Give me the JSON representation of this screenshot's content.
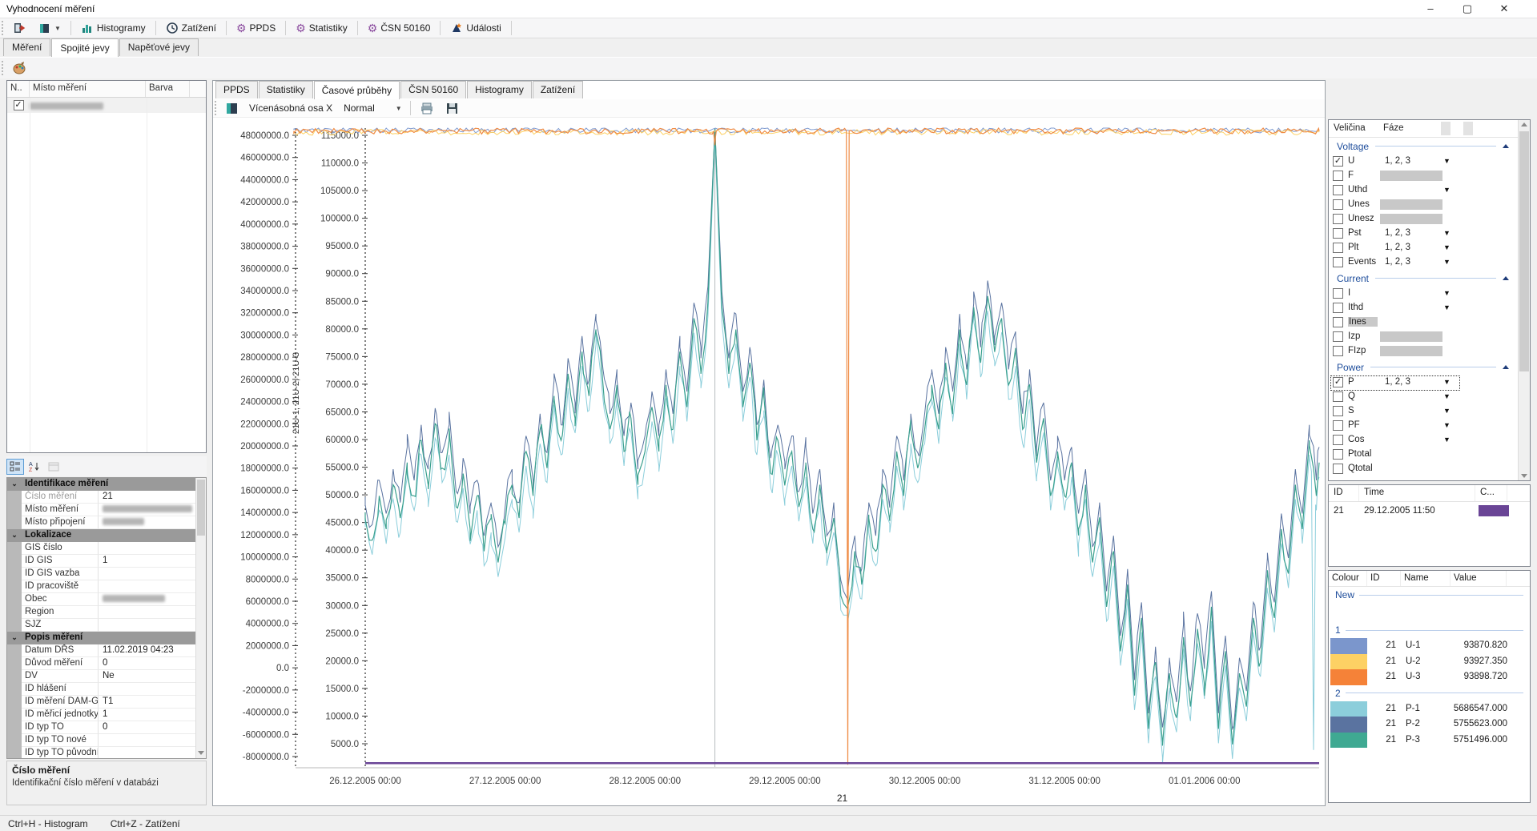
{
  "window": {
    "title": "Vyhodnocení měření",
    "controls": {
      "minimize": "–",
      "maximize": "▢",
      "close": "✕"
    }
  },
  "toolbar": {
    "buttons": [
      {
        "id": "exit",
        "label": ""
      },
      {
        "id": "window-mode",
        "label": ""
      },
      {
        "id": "histogramy",
        "label": "Histogramy"
      },
      {
        "id": "zatizeni",
        "label": "Zatížení"
      },
      {
        "id": "ppds",
        "label": "PPDS"
      },
      {
        "id": "statistiky",
        "label": "Statistiky"
      },
      {
        "id": "csn-50160",
        "label": "ČSN 50160"
      },
      {
        "id": "udalosti",
        "label": "Události"
      }
    ]
  },
  "main_tabs": {
    "items": [
      "Měření",
      "Spojité jevy",
      "Napěťové jevy"
    ],
    "active": 1
  },
  "measurement_list": {
    "columns": [
      "N..",
      "Místo měření",
      "Barva"
    ],
    "rows": [
      {
        "checked": true,
        "place_redacted": true,
        "color": ""
      }
    ]
  },
  "property_grid": {
    "rows": [
      {
        "t": "cat",
        "label": "Identifikace měření"
      },
      {
        "label": "Číslo měření",
        "value": "21",
        "dim": true
      },
      {
        "label": "Místo měření",
        "value": "",
        "blur": 112
      },
      {
        "label": "Místo připojení",
        "value": "",
        "blur": 52
      },
      {
        "t": "cat",
        "label": "Lokalizace"
      },
      {
        "label": "GIS číslo",
        "value": ""
      },
      {
        "label": "ID GIS",
        "value": "1"
      },
      {
        "label": "ID GIS vazba",
        "value": ""
      },
      {
        "label": "ID pracoviště",
        "value": ""
      },
      {
        "label": "Obec",
        "value": "",
        "blur": 78
      },
      {
        "label": "Region",
        "value": ""
      },
      {
        "label": "SJZ",
        "value": ""
      },
      {
        "t": "cat",
        "label": "Popis měření"
      },
      {
        "label": "Datum DŘS",
        "value": "11.02.2019 04:23"
      },
      {
        "label": "Důvod měření",
        "value": "0"
      },
      {
        "label": "DV",
        "value": "Ne"
      },
      {
        "label": "ID hlášení",
        "value": ""
      },
      {
        "label": "ID měření DAM-GI",
        "value": "T1"
      },
      {
        "label": "ID měřicí jednotky",
        "value": "1"
      },
      {
        "label": "ID typ TO",
        "value": "0"
      },
      {
        "label": "ID typ TO nové",
        "value": ""
      },
      {
        "label": "ID typ TO původní",
        "value": ""
      }
    ]
  },
  "pg_desc": {
    "title": "Číslo měření",
    "text": "Identifikační číslo měření v databázi"
  },
  "chart_tabs": {
    "items": [
      "PPDS",
      "Statistiky",
      "Časové průběhy",
      "ČSN 50160",
      "Histogramy",
      "Zatížení"
    ],
    "active": 2
  },
  "chart_toolbar": {
    "axis_label": "Vícenásobná osa X",
    "mode": "Normal"
  },
  "quantity_tree": {
    "columns": [
      "Veličina",
      "Fáze"
    ],
    "groups": [
      {
        "label": "Voltage",
        "rows": [
          {
            "name": "U",
            "checked": true,
            "phases": "1, 2, 3",
            "dropdown": true
          },
          {
            "name": "F",
            "grayBox": true
          },
          {
            "name": "Uthd",
            "dropdown": true
          },
          {
            "name": "Unes",
            "grayBox": true
          },
          {
            "name": "Unesz",
            "grayBox": true
          },
          {
            "name": "Pst",
            "phases": "1, 2, 3",
            "dropdown": true
          },
          {
            "name": "Plt",
            "phases": "1, 2, 3",
            "dropdown": true
          },
          {
            "name": "Events",
            "phases": "1, 2, 3",
            "dropdown": true
          }
        ]
      },
      {
        "label": "Current",
        "rows": [
          {
            "name": "I",
            "dropdown": true
          },
          {
            "name": "Ithd",
            "dropdown": true
          },
          {
            "name": "Ines",
            "labelHighlight": true
          },
          {
            "name": "Izp",
            "grayBox": true
          },
          {
            "name": "FIzp",
            "grayBox": true
          }
        ]
      },
      {
        "label": "Power",
        "rows": [
          {
            "name": "P",
            "checked": true,
            "phases": "1, 2, 3",
            "dropdown": true,
            "focused": true
          },
          {
            "name": "Q",
            "dropdown": true
          },
          {
            "name": "S",
            "dropdown": true
          },
          {
            "name": "PF",
            "dropdown": true
          },
          {
            "name": "Cos",
            "dropdown": true
          },
          {
            "name": "Ptotal"
          },
          {
            "name": "Qtotal"
          }
        ]
      }
    ]
  },
  "id_table": {
    "columns": [
      "ID",
      "Time",
      "C..."
    ],
    "rows": [
      {
        "id": "21",
        "time": "29.12.2005 11:50",
        "color": "#6a4596"
      }
    ]
  },
  "legend": {
    "columns": [
      "Colour",
      "ID",
      "Name",
      "Value"
    ],
    "groups": [
      {
        "label": "New",
        "rows": []
      },
      {
        "label": "1",
        "rows": [
          {
            "color": "#7b96cc",
            "id": "21",
            "name": "U-1",
            "value": "93870.820"
          },
          {
            "color": "#fdd164",
            "id": "21",
            "name": "U-2",
            "value": "93927.350"
          },
          {
            "color": "#f58238",
            "id": "21",
            "name": "U-3",
            "value": "93898.720"
          }
        ]
      },
      {
        "label": "2",
        "rows": [
          {
            "color": "#8ccedb",
            "id": "21",
            "name": "P-1",
            "value": "5686547.000"
          },
          {
            "color": "#5a73a0",
            "id": "21",
            "name": "P-2",
            "value": "5755623.000"
          },
          {
            "color": "#3fa992",
            "id": "21",
            "name": "P-3",
            "value": "5751496.000"
          }
        ]
      }
    ]
  },
  "status_bar": {
    "items": [
      "Ctrl+H - Histogram",
      "Ctrl+Z - Zatížení"
    ]
  },
  "chart_data": {
    "type": "line",
    "title": "",
    "x_axis": {
      "unit": "days from 26.12.2005 00:00",
      "range": [
        -0.51,
        6.82
      ],
      "sub_label": "21",
      "sub_label_t": 3.41,
      "ticks": [
        {
          "t": 0,
          "label": "26.12.2005 00:00"
        },
        {
          "t": 1,
          "label": "27.12.2005 00:00"
        },
        {
          "t": 2,
          "label": "28.12.2005 00:00"
        },
        {
          "t": 3,
          "label": "29.12.2005 00:00"
        },
        {
          "t": 4,
          "label": "30.12.2005 00:00"
        },
        {
          "t": 5,
          "label": "31.12.2005 00:00"
        },
        {
          "t": 6,
          "label": "01.01.2006 00:00"
        }
      ]
    },
    "left_axis": {
      "ticks": [
        48000000,
        46000000,
        44000000,
        42000000,
        40000000,
        38000000,
        36000000,
        34000000,
        32000000,
        30000000,
        28000000,
        26000000,
        24000000,
        22000000,
        20000000,
        18000000,
        16000000,
        14000000,
        12000000,
        10000000,
        8000000,
        6000000,
        4000000,
        2000000,
        0,
        -2000000,
        -4000000,
        -6000000,
        -8000000
      ]
    },
    "right_axis": {
      "title": "21U-1, 21U-2, 21U-3",
      "ticks": [
        115000,
        110000,
        105000,
        100000,
        95000,
        90000,
        85000,
        80000,
        75000,
        70000,
        65000,
        60000,
        55000,
        50000,
        45000,
        40000,
        35000,
        30000,
        25000,
        20000,
        15000,
        10000,
        5000
      ]
    },
    "cursor_lines": [
      {
        "t": 2.5,
        "color": "#b8bcc0"
      }
    ],
    "p_shape_anchors_millions": [
      [
        0,
        14
      ],
      [
        0.05,
        11.5
      ],
      [
        0.1,
        15.5
      ],
      [
        0.15,
        12.5
      ],
      [
        0.2,
        16.5
      ],
      [
        0.25,
        13.5
      ],
      [
        0.3,
        18.5
      ],
      [
        0.35,
        15.5
      ],
      [
        0.4,
        20.5
      ],
      [
        0.45,
        16.5
      ],
      [
        0.5,
        22
      ],
      [
        0.55,
        18
      ],
      [
        0.6,
        20.5
      ],
      [
        0.65,
        14.5
      ],
      [
        0.7,
        17.5
      ],
      [
        0.75,
        12.5
      ],
      [
        0.8,
        15.5
      ],
      [
        0.85,
        10.5
      ],
      [
        0.9,
        13.5
      ],
      [
        0.95,
        9.5
      ],
      [
        1,
        13
      ],
      [
        1.05,
        16.5
      ],
      [
        1.1,
        13.5
      ],
      [
        1.15,
        19.5
      ],
      [
        1.2,
        15.5
      ],
      [
        1.25,
        21.5
      ],
      [
        1.3,
        18
      ],
      [
        1.35,
        24.5
      ],
      [
        1.4,
        20.5
      ],
      [
        1.45,
        26.5
      ],
      [
        1.5,
        22.5
      ],
      [
        1.55,
        28.5
      ],
      [
        1.6,
        24.5
      ],
      [
        1.65,
        30.5
      ],
      [
        1.7,
        25.5
      ],
      [
        1.75,
        21.5
      ],
      [
        1.8,
        25.5
      ],
      [
        1.85,
        19.5
      ],
      [
        1.9,
        22.5
      ],
      [
        1.95,
        16.5
      ],
      [
        2,
        19.5
      ],
      [
        2.05,
        23.5
      ],
      [
        2.1,
        19.5
      ],
      [
        2.15,
        25.5
      ],
      [
        2.2,
        21.5
      ],
      [
        2.25,
        28.5
      ],
      [
        2.3,
        23.5
      ],
      [
        2.35,
        31.5
      ],
      [
        2.4,
        26.5
      ],
      [
        2.45,
        33
      ],
      [
        2.5,
        49
      ],
      [
        2.55,
        32.5
      ],
      [
        2.6,
        26.5
      ],
      [
        2.65,
        30.5
      ],
      [
        2.7,
        23.5
      ],
      [
        2.75,
        27.5
      ],
      [
        2.8,
        20.5
      ],
      [
        2.85,
        24.5
      ],
      [
        2.9,
        17.5
      ],
      [
        2.95,
        20.5
      ],
      [
        3,
        16.5
      ],
      [
        3.05,
        19.5
      ],
      [
        3.1,
        14.5
      ],
      [
        3.15,
        18.5
      ],
      [
        3.2,
        12.5
      ],
      [
        3.25,
        16.5
      ],
      [
        3.3,
        10.5
      ],
      [
        3.35,
        13.5
      ],
      [
        3.4,
        6.5
      ],
      [
        3.45,
        5.5
      ],
      [
        3.5,
        10.5
      ],
      [
        3.55,
        7.5
      ],
      [
        3.6,
        13.5
      ],
      [
        3.65,
        10.5
      ],
      [
        3.7,
        16.5
      ],
      [
        3.75,
        13.5
      ],
      [
        3.8,
        19.5
      ],
      [
        3.85,
        15.5
      ],
      [
        3.9,
        21.5
      ],
      [
        3.95,
        18
      ],
      [
        4,
        21.5
      ],
      [
        4.05,
        25.5
      ],
      [
        4.1,
        21.5
      ],
      [
        4.15,
        27.5
      ],
      [
        4.2,
        23.5
      ],
      [
        4.25,
        30.5
      ],
      [
        4.3,
        25.5
      ],
      [
        4.35,
        32.5
      ],
      [
        4.4,
        27.5
      ],
      [
        4.45,
        33.5
      ],
      [
        4.5,
        28.5
      ],
      [
        4.55,
        31.5
      ],
      [
        4.6,
        25.5
      ],
      [
        4.65,
        28.5
      ],
      [
        4.7,
        21.5
      ],
      [
        4.75,
        25.5
      ],
      [
        4.8,
        18.5
      ],
      [
        4.85,
        22.5
      ],
      [
        4.9,
        15.5
      ],
      [
        4.95,
        19.5
      ],
      [
        5,
        15.5
      ],
      [
        5.05,
        18.5
      ],
      [
        5.1,
        12.5
      ],
      [
        5.15,
        16.5
      ],
      [
        5.2,
        9.5
      ],
      [
        5.25,
        13.5
      ],
      [
        5.3,
        5.5
      ],
      [
        5.35,
        10.5
      ],
      [
        5.4,
        1.5
      ],
      [
        5.45,
        7.5
      ],
      [
        5.5,
        -2.5
      ],
      [
        5.55,
        4.5
      ],
      [
        5.6,
        -5.5
      ],
      [
        5.65,
        0.5
      ],
      [
        5.7,
        -6.75
      ],
      [
        5.75,
        -0.5
      ],
      [
        5.8,
        -4.5
      ],
      [
        5.85,
        2.5
      ],
      [
        5.9,
        -3.5
      ],
      [
        5.95,
        3.5
      ],
      [
        6,
        -1.5
      ],
      [
        6.05,
        5.5
      ],
      [
        6.1,
        -5.5
      ],
      [
        6.15,
        1.5
      ],
      [
        6.2,
        -6.9
      ],
      [
        6.25,
        -0.5
      ],
      [
        6.3,
        -3.5
      ],
      [
        6.35,
        4.5
      ],
      [
        6.4,
        0.5
      ],
      [
        6.45,
        8.5
      ],
      [
        6.5,
        4.5
      ],
      [
        6.55,
        12.5
      ],
      [
        6.6,
        8.5
      ],
      [
        6.65,
        16.5
      ],
      [
        6.7,
        12.5
      ],
      [
        6.75,
        20.5
      ],
      [
        6.8,
        15.5
      ],
      [
        6.82,
        18.5
      ]
    ],
    "series": [
      {
        "name": "21 P-1",
        "color": "#8ccedb",
        "axis": "left",
        "anchors_key": "p_shape",
        "offset": -1300000,
        "jitter": {
          "amp": 1200000,
          "seed": 41,
          "step": 0.03
        },
        "anomalies": [
          [
            6.78,
            -7400000
          ]
        ],
        "width": 1
      },
      {
        "name": "21 P-2",
        "color": "#5a73a0",
        "axis": "left",
        "anchors_key": "p_shape",
        "offset": 1400000,
        "jitter": {
          "amp": 1250000,
          "seed": 52,
          "step": 0.03
        },
        "width": 1
      },
      {
        "name": "21 P-3",
        "color": "#3aa08e",
        "axis": "left",
        "anchors_key": "p_shape",
        "offset": 0,
        "jitter": {
          "amp": 1200000,
          "seed": 63,
          "step": 0.03
        },
        "width": 1.2
      },
      {
        "name": "21 U-1",
        "color": "#7f9bd1",
        "axis": "right",
        "anchors": [
          [
            -0.51,
            115950
          ],
          [
            6.82,
            115950
          ]
        ],
        "jitter": {
          "amp": 520,
          "seed": 5,
          "step": 0.022
        },
        "width": 1
      },
      {
        "name": "21 U-2",
        "color": "#fdd164",
        "axis": "right",
        "anchors": [
          [
            -0.51,
            115550
          ],
          [
            6.82,
            115550
          ]
        ],
        "jitter": {
          "amp": 520,
          "seed": 6,
          "step": 0.022
        },
        "width": 1
      },
      {
        "name": "21 U-3",
        "color": "#ef8b44",
        "axis": "right",
        "anchors": [
          [
            -0.51,
            115750
          ],
          [
            2.49,
            115750
          ],
          [
            2.5,
            113200
          ],
          [
            2.51,
            115750
          ],
          [
            3.44,
            115800
          ],
          [
            3.45,
            1200
          ],
          [
            3.46,
            115800
          ],
          [
            6.82,
            115750
          ]
        ],
        "jitter": {
          "amp": 540,
          "seed": 9,
          "step": 0.022
        },
        "width": 1.2
      },
      {
        "name": "event-marker",
        "color": "#6a4596",
        "axis": "left",
        "anchors": [
          [
            0,
            -8600000
          ],
          [
            6.82,
            -8600000
          ]
        ],
        "width": 2.5
      }
    ]
  }
}
